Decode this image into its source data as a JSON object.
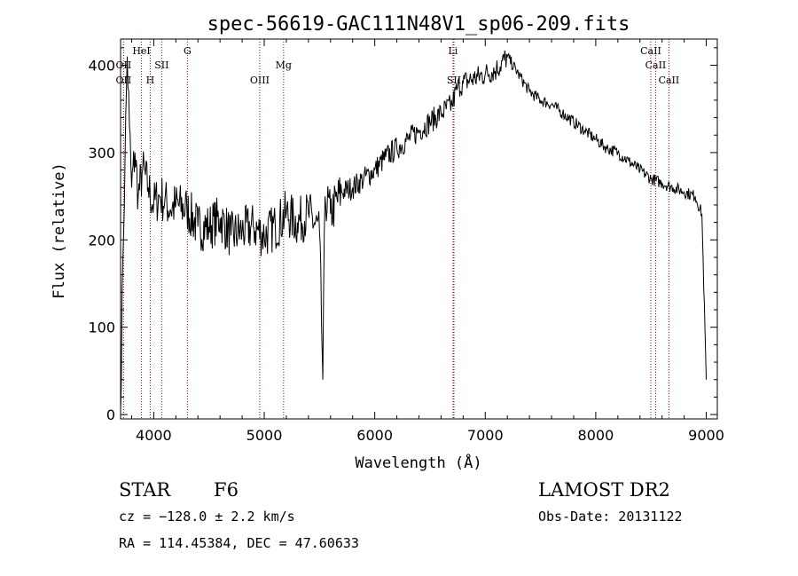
{
  "title": "spec-56619-GAC111N48V1_sp06-209.fits",
  "info": {
    "class_label": "STAR",
    "subclass": "F6",
    "survey": "LAMOST DR2",
    "cz": "cz = −128.0 ± 2.2 km/s",
    "obs_date": "Obs-Date: 20131122",
    "coords": "RA = 114.45384, DEC =  47.60633"
  },
  "chart_data": {
    "type": "line",
    "title": "spec-56619-GAC111N48V1_sp06-209.fits",
    "xlabel": "Wavelength (Å)",
    "ylabel": "Flux (relative)",
    "xlim": [
      3700,
      9100
    ],
    "ylim": [
      -5,
      430
    ],
    "xticks": [
      4000,
      5000,
      6000,
      7000,
      8000,
      9000
    ],
    "xtick_labels": [
      "4000",
      "5000",
      "6000",
      "7000",
      "8000",
      "9000"
    ],
    "yticks": [
      0,
      100,
      200,
      300,
      400
    ],
    "ytick_labels": [
      "0",
      "100",
      "200",
      "300",
      "400"
    ],
    "grid": false,
    "series": [
      {
        "color": "#000000",
        "x": [
          3700,
          3720,
          3740,
          3760,
          3780,
          3800,
          3830,
          3860,
          3900,
          3950,
          4000,
          4050,
          4100,
          4150,
          4200,
          4300,
          4400,
          4500,
          4600,
          4700,
          4800,
          4900,
          5000,
          5100,
          5200,
          5300,
          5400,
          5500,
          5530,
          5550,
          5600,
          5700,
          5800,
          5900,
          6000,
          6100,
          6200,
          6300,
          6400,
          6500,
          6600,
          6700,
          6750,
          6800,
          6900,
          7000,
          7100,
          7200,
          7300,
          7400,
          7500,
          7600,
          7700,
          7800,
          7900,
          8000,
          8100,
          8200,
          8300,
          8400,
          8500,
          8600,
          8700,
          8800,
          8900,
          8960,
          9000
        ],
        "y": [
          5,
          175,
          290,
          410,
          330,
          260,
          300,
          250,
          280,
          260,
          240,
          250,
          245,
          235,
          240,
          235,
          215,
          215,
          225,
          205,
          210,
          215,
          205,
          215,
          230,
          220,
          230,
          210,
          40,
          250,
          230,
          255,
          260,
          270,
          280,
          295,
          305,
          315,
          325,
          335,
          345,
          355,
          375,
          380,
          385,
          390,
          395,
          410,
          390,
          370,
          360,
          355,
          345,
          335,
          325,
          315,
          305,
          300,
          290,
          280,
          270,
          265,
          260,
          255,
          250,
          230,
          40
        ]
      }
    ],
    "annotations": [
      {
        "label": "OII",
        "x": 3727,
        "level": 1
      },
      {
        "label": "OII",
        "x": 3727,
        "level": 3
      },
      {
        "label": "HeI",
        "x": 3889,
        "level": 0
      },
      {
        "label": "H",
        "x": 3968,
        "level": 3
      },
      {
        "label": "SII",
        "x": 4072,
        "level": 1
      },
      {
        "label": "G",
        "x": 4305,
        "level": 0
      },
      {
        "label": "OIII",
        "x": 4959,
        "level": 3
      },
      {
        "label": "Mg",
        "x": 5175,
        "level": 1
      },
      {
        "label": "Li",
        "x": 6708,
        "level": 0
      },
      {
        "label": "SII",
        "x": 6717,
        "level": 3
      },
      {
        "label": "CaII",
        "x": 8498,
        "level": 0
      },
      {
        "label": "CaII",
        "x": 8542,
        "level": 2
      },
      {
        "label": "CaII",
        "x": 8662,
        "level": 3
      }
    ],
    "line_color": "#aa0000"
  }
}
